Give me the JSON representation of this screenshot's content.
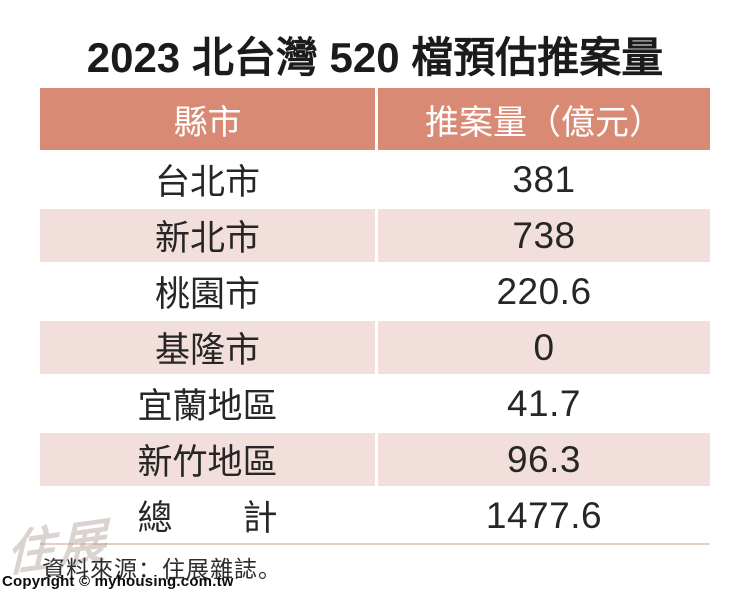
{
  "title": "2023 北台灣 520 檔預估推案量",
  "table": {
    "header": {
      "region": "縣市",
      "amount": "推案量（億元）"
    },
    "rows": [
      {
        "region": "台北市",
        "amount": "381"
      },
      {
        "region": "新北市",
        "amount": "738"
      },
      {
        "region": "桃園市",
        "amount": "220.6"
      },
      {
        "region": "基隆市",
        "amount": "0"
      },
      {
        "region": "宜蘭地區",
        "amount": "41.7"
      },
      {
        "region": "新竹地區",
        "amount": "96.3"
      },
      {
        "region": "總　　計",
        "amount": "1477.6"
      }
    ]
  },
  "footer": {
    "source": "資料來源：住展雜誌。",
    "watermark": "住展",
    "copyright": "Copyright © myhousing.com.tw"
  },
  "colors": {
    "header_bg": "#D98A74",
    "header_text": "#FFFFFF",
    "alt_row_bg": "#F2DEDA",
    "row_bg": "#FFFFFF",
    "bottom_border": "#E7CFC3"
  },
  "chart_data": {
    "type": "table",
    "title": "2023 北台灣 520 檔預估推案量",
    "columns": [
      "縣市",
      "推案量（億元）"
    ],
    "rows": [
      [
        "台北市",
        381
      ],
      [
        "新北市",
        738
      ],
      [
        "桃園市",
        220.6
      ],
      [
        "基隆市",
        0
      ],
      [
        "宜蘭地區",
        41.7
      ],
      [
        "新竹地區",
        96.3
      ],
      [
        "總計",
        1477.6
      ]
    ],
    "source": "資料來源：住展雜誌。",
    "layout": {
      "header_fill": "#D98A74",
      "zebra_fill": "#F2DEDA",
      "alignment": "center"
    }
  }
}
